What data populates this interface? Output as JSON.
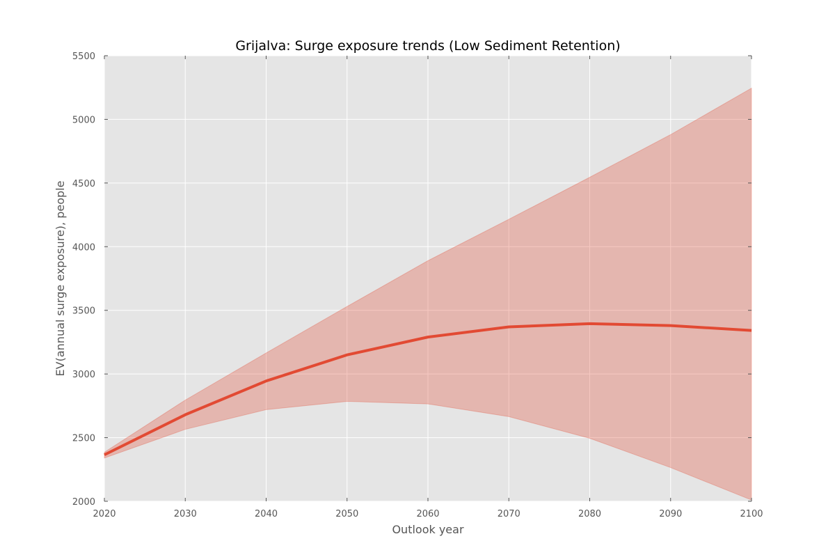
{
  "chart_data": {
    "type": "line",
    "title": "Grijalva: Surge exposure trends (Low Sediment Retention)",
    "xlabel": "Outlook year",
    "ylabel": "EV(annual surge exposure), people",
    "xlim": [
      2020,
      2100
    ],
    "ylim": [
      2000,
      5500
    ],
    "x_ticks": [
      2020,
      2030,
      2040,
      2050,
      2060,
      2070,
      2080,
      2090,
      2100
    ],
    "y_ticks": [
      2000,
      2500,
      3000,
      3500,
      4000,
      4500,
      5000,
      5500
    ],
    "grid": true,
    "x": [
      2020,
      2030,
      2040,
      2050,
      2060,
      2070,
      2080,
      2090,
      2100
    ],
    "series": [
      {
        "values": [
          2365,
          2680,
          2945,
          3150,
          3290,
          3370,
          3395,
          3380,
          3342
        ],
        "upper": [
          2385,
          2795,
          3165,
          3530,
          3890,
          4215,
          4545,
          4880,
          5245
        ],
        "lower": [
          2340,
          2565,
          2720,
          2785,
          2765,
          2665,
          2495,
          2265,
          2010
        ]
      }
    ],
    "colors": {
      "line": "#e24a33",
      "band": "#e24a33",
      "plot_background": "#e5e5e5",
      "grid": "#ffffff"
    }
  }
}
